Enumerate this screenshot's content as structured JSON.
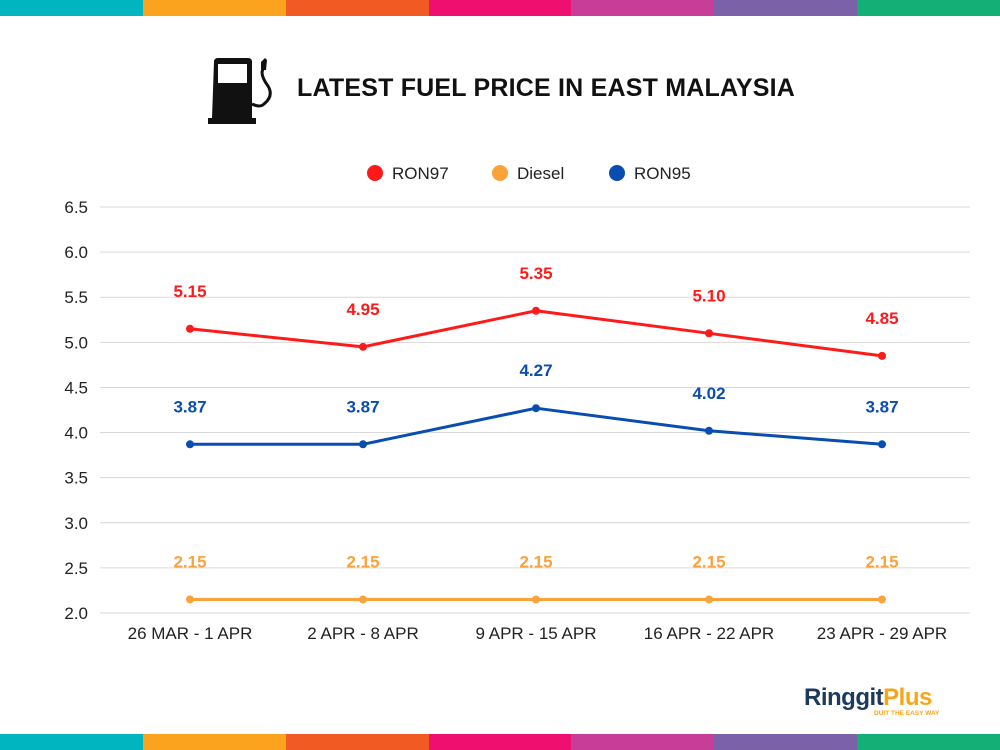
{
  "header": {
    "title": "LATEST FUEL PRICE IN EAST MALAYSIA",
    "icon": "fuel-pump-icon"
  },
  "stripe_colors": [
    "#00B5BF",
    "#FBA31F",
    "#F25A24",
    "#EE0F6E",
    "#C83D98",
    "#7A61A8",
    "#14AE77"
  ],
  "logo": {
    "name_part1": "Ringgit",
    "name_part2": "Plus",
    "tagline": "DUIT THE EASY WAY",
    "color1": "#1B3A5C",
    "color2": "#F9A51A"
  },
  "chart_data": {
    "type": "line",
    "categories": [
      "26 MAR - 1 APR",
      "2 APR - 8 APR",
      "9 APR - 15 APR",
      "16 APR - 22 APR",
      "23 APR - 29 APR"
    ],
    "ylim": [
      2.0,
      6.5
    ],
    "yticks": [
      "2.0",
      "2.5",
      "3.0",
      "3.5",
      "4.0",
      "4.5",
      "5.0",
      "5.5",
      "6.0",
      "6.5"
    ],
    "grid": true,
    "legend_position": "top",
    "series": [
      {
        "name": "RON97",
        "color": "#FF1A1A",
        "values": [
          5.15,
          4.95,
          5.35,
          5.1,
          4.85
        ],
        "labels": [
          "5.15",
          "4.95",
          "5.35",
          "5.10",
          "4.85"
        ]
      },
      {
        "name": "Diesel",
        "color": "#FBA33A",
        "values": [
          2.15,
          2.15,
          2.15,
          2.15,
          2.15
        ],
        "labels": [
          "2.15",
          "2.15",
          "2.15",
          "2.15",
          "2.15"
        ]
      },
      {
        "name": "RON95",
        "color": "#0A4DB0",
        "values": [
          3.87,
          3.87,
          4.27,
          4.02,
          3.87
        ],
        "labels": [
          "3.87",
          "3.87",
          "4.27",
          "4.02",
          "3.87"
        ]
      }
    ]
  }
}
